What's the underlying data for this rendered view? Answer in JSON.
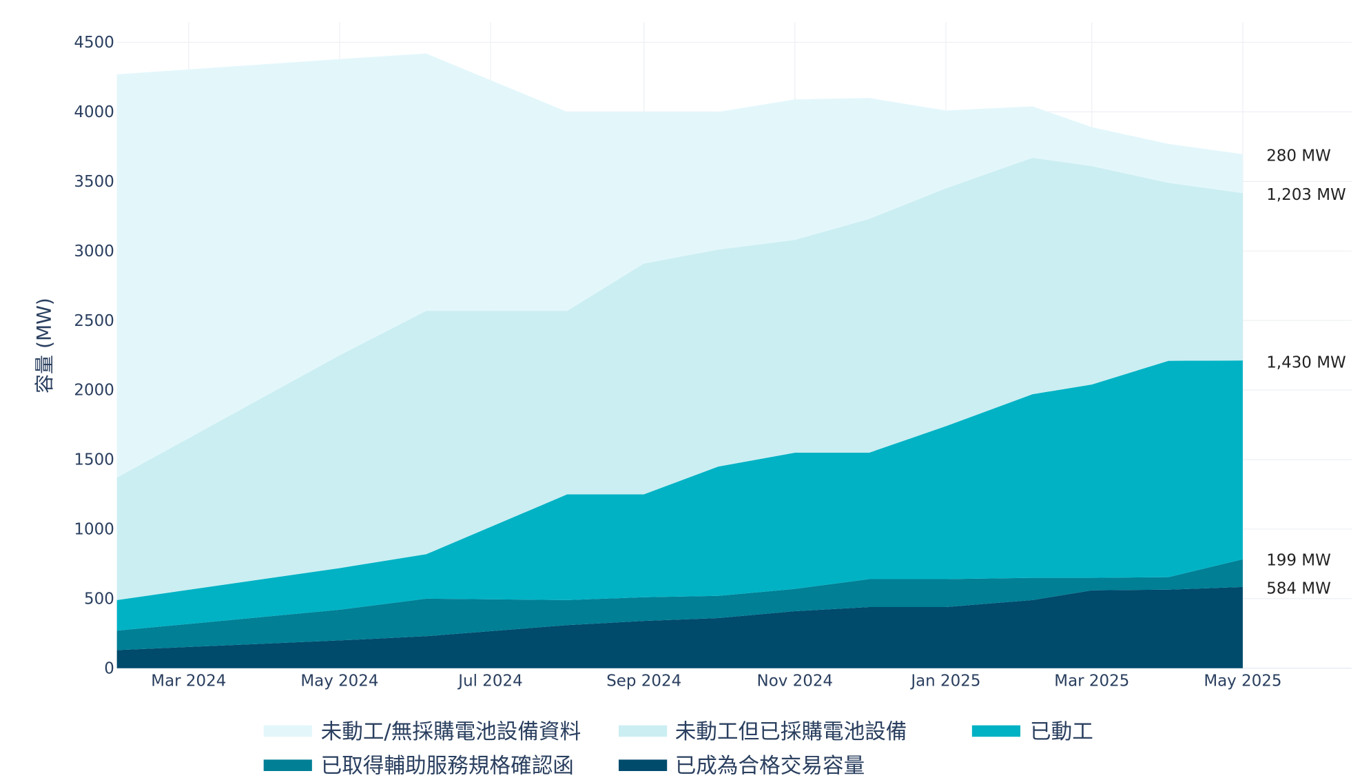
{
  "chart_data": {
    "type": "area",
    "stacked": true,
    "title": "",
    "xlabel": "",
    "ylabel": "容量 (MW)",
    "ylim": [
      0,
      4500
    ],
    "xlim": [
      "2024-02-01",
      "2025-06-14"
    ],
    "yticks": [
      0,
      500,
      1000,
      1500,
      2000,
      2500,
      3000,
      3500,
      4000,
      4500
    ],
    "xticks": [
      {
        "date": "2024-03-01",
        "label": "Mar 2024"
      },
      {
        "date": "2024-05-01",
        "label": "May 2024"
      },
      {
        "date": "2024-07-01",
        "label": "Jul 2024"
      },
      {
        "date": "2024-09-01",
        "label": "Sep 2024"
      },
      {
        "date": "2024-11-01",
        "label": "Nov 2024"
      },
      {
        "date": "2025-01-01",
        "label": "Jan 2025"
      },
      {
        "date": "2025-03-01",
        "label": "Mar 2025"
      },
      {
        "date": "2025-05-01",
        "label": "May 2025"
      }
    ],
    "grid": true,
    "legend_position": "bottom",
    "x": [
      "2024-02-01",
      "2024-05-01",
      "2024-06-05",
      "2024-08-01",
      "2024-09-01",
      "2024-10-01",
      "2024-11-01",
      "2024-12-01",
      "2025-01-01",
      "2025-02-05",
      "2025-03-01",
      "2025-04-01",
      "2025-05-01"
    ],
    "series": [
      {
        "name": "已成為合格交易容量",
        "color": "#004a6b",
        "values": [
          130,
          200,
          230,
          310,
          340,
          360,
          410,
          440,
          440,
          490,
          560,
          565,
          584
        ]
      },
      {
        "name": "已取得輔助服務規格確認函",
        "color": "#007f95",
        "values": [
          140,
          220,
          270,
          180,
          170,
          160,
          160,
          200,
          200,
          160,
          90,
          90,
          199
        ]
      },
      {
        "name": "已動工",
        "color": "#00b2c4",
        "values": [
          220,
          300,
          320,
          760,
          740,
          930,
          980,
          910,
          1100,
          1320,
          1390,
          1555,
          1430
        ]
      },
      {
        "name": "未動工但已採購電池設備",
        "color": "#cbeef2",
        "values": [
          880,
          1530,
          1750,
          1320,
          1660,
          1560,
          1530,
          1680,
          1710,
          1700,
          1570,
          1280,
          1203
        ]
      },
      {
        "name": "未動工/無採購電池設備資料",
        "color": "#e3f7fb",
        "values": [
          2900,
          2130,
          1850,
          1430,
          1090,
          990,
          1010,
          870,
          560,
          370,
          280,
          280,
          280
        ]
      }
    ],
    "annotations": [
      "280 MW",
      "1,203 MW",
      "1,430 MW",
      "199 MW",
      "584 MW"
    ]
  }
}
